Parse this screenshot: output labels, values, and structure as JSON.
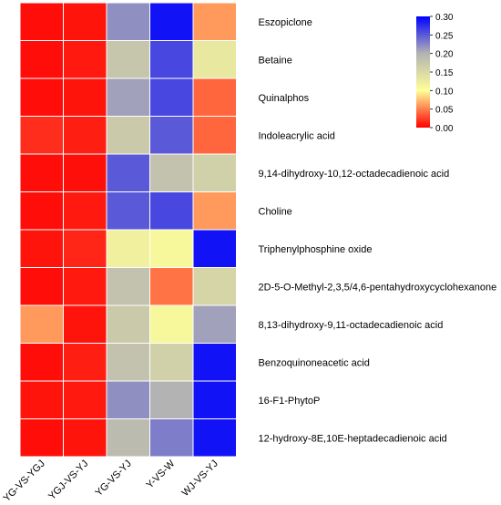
{
  "chart_data": {
    "type": "heatmap",
    "columns": [
      "YG-VS-YGJ",
      "YGJ-VS-YJ",
      "YG-VS-YJ",
      "Y-VS-W",
      "WJ-VS-YJ"
    ],
    "rows": [
      "Eszopiclone",
      "Betaine",
      "Quinalphos",
      "Indoleacrylic acid",
      "9,14-dihydroxy-10,12-octadecadienoic acid",
      "Choline",
      "Triphenylphosphine oxide",
      "2D-5-O-Methyl-2,3,5/4,6-pentahydroxycyclohexanone",
      "8,13-dihydroxy-9,11-octadecadienoic acid",
      "Benzoquinoneacetic acid",
      "16-F1-PhytoP",
      "12-hydroxy-8E,10E-heptadecadienoic acid"
    ],
    "values": [
      [
        0.005,
        0.008,
        0.22,
        0.29,
        0.06
      ],
      [
        0.005,
        0.01,
        0.175,
        0.26,
        0.13
      ],
      [
        0.005,
        0.008,
        0.21,
        0.26,
        0.04
      ],
      [
        0.018,
        0.012,
        0.17,
        0.25,
        0.04
      ],
      [
        0.005,
        0.006,
        0.25,
        0.18,
        0.16
      ],
      [
        0.005,
        0.01,
        0.25,
        0.26,
        0.06
      ],
      [
        0.008,
        0.015,
        0.12,
        0.11,
        0.29
      ],
      [
        0.005,
        0.01,
        0.18,
        0.045,
        0.155
      ],
      [
        0.06,
        0.008,
        0.17,
        0.11,
        0.21
      ],
      [
        0.005,
        0.012,
        0.18,
        0.16,
        0.29
      ],
      [
        0.008,
        0.01,
        0.22,
        0.2,
        0.29
      ],
      [
        0.005,
        0.008,
        0.19,
        0.23,
        0.29
      ]
    ],
    "colorbar": {
      "min": 0.0,
      "max": 0.3,
      "ticks": [
        "0.00",
        "0.05",
        "0.10",
        "0.15",
        "0.20",
        "0.25",
        "0.30"
      ],
      "color_stops": [
        {
          "value": 0.0,
          "color": "#ff0000"
        },
        {
          "value": 0.1,
          "color": "#ffff99"
        },
        {
          "value": 0.2,
          "color": "#b3b3b3"
        },
        {
          "value": 0.3,
          "color": "#0000ff"
        }
      ]
    },
    "legend_position": "top-right",
    "grid": true
  }
}
